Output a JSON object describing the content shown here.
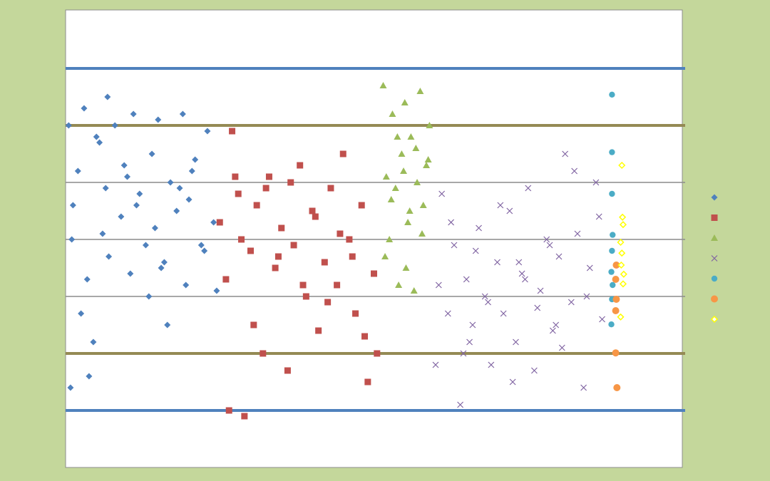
{
  "chart_data": {
    "type": "scatter",
    "xlim": [
      0,
      100
    ],
    "ylim": [
      0,
      8
    ],
    "background": "#c4d79b",
    "plot_background": "#ffffff",
    "hlines": [
      {
        "value": 7,
        "color": "#4f81bd",
        "width": 4
      },
      {
        "value": 6,
        "color": "#948a54",
        "width": 4
      },
      {
        "value": 5,
        "color": "#8c8c8c",
        "width": 1.5
      },
      {
        "value": 4,
        "color": "#8c8c8c",
        "width": 1.5
      },
      {
        "value": 3,
        "color": "#8c8c8c",
        "width": 1.5
      },
      {
        "value": 2,
        "color": "#948a54",
        "width": 4
      },
      {
        "value": 1,
        "color": "#4f81bd",
        "width": 4
      }
    ],
    "legend": "right",
    "series": [
      {
        "color": "#4f81bd",
        "marker": "diamond",
        "x": [
          0.5,
          1.2,
          2,
          3,
          3.5,
          4.5,
          5,
          6,
          6.5,
          7,
          8,
          9,
          10,
          10.5,
          11,
          12,
          13,
          14,
          14.5,
          15,
          16,
          17,
          18,
          19,
          19.5,
          20,
          21,
          22,
          23,
          24,
          24.5,
          3.8,
          6.8,
          1,
          2.5,
          13.5,
          9.5,
          18.5,
          22.5,
          0.8,
          5.5,
          15.5,
          11.5,
          20.5,
          16.5
        ],
        "values": [
          6.0,
          4.6,
          5.2,
          6.3,
          3.3,
          2.2,
          5.8,
          4.1,
          4.9,
          3.7,
          6.0,
          4.4,
          5.1,
          3.4,
          6.2,
          4.8,
          3.9,
          5.5,
          4.2,
          6.1,
          3.6,
          5.0,
          4.5,
          6.2,
          3.2,
          4.7,
          5.4,
          3.9,
          5.9,
          4.3,
          3.1,
          1.6,
          6.5,
          4.0,
          2.7,
          3.0,
          5.3,
          4.9,
          3.8,
          1.4,
          5.7,
          3.5,
          4.6,
          5.2,
          2.5
        ]
      },
      {
        "color": "#c0504d",
        "marker": "square",
        "x": [
          25,
          26,
          27,
          28,
          29,
          30,
          31,
          32,
          33,
          34,
          35,
          36,
          37,
          38,
          39,
          40,
          41,
          42,
          43,
          44,
          45,
          46,
          47,
          48,
          49,
          50,
          26.5,
          28.5,
          30.5,
          32.5,
          34.5,
          36.5,
          38.5,
          40.5,
          42.5,
          44.5,
          46.5,
          48.5,
          50.5,
          27.5
        ],
        "values": [
          4.3,
          3.3,
          5.9,
          4.8,
          0.9,
          3.8,
          4.6,
          2.0,
          5.1,
          3.5,
          4.2,
          1.7,
          3.9,
          5.3,
          3.0,
          4.5,
          2.4,
          3.6,
          4.9,
          3.2,
          5.5,
          4.0,
          2.7,
          4.6,
          1.5,
          3.4,
          1.0,
          4.0,
          2.5,
          4.9,
          3.7,
          5.0,
          3.2,
          4.4,
          2.9,
          4.1,
          3.7,
          2.3,
          2.0,
          5.1
        ]
      },
      {
        "color": "#9bbb59",
        "marker": "triangle",
        "x": [
          51.5,
          52,
          52.5,
          53,
          53.5,
          54,
          54.5,
          55,
          55.5,
          56,
          56.5,
          57,
          57.5,
          58,
          58.5,
          59,
          51.8,
          52.8,
          53.8,
          54.8,
          55.8,
          56.8,
          57.8,
          58.8,
          55.2
        ],
        "values": [
          6.7,
          5.1,
          4.0,
          6.2,
          4.9,
          3.2,
          5.5,
          6.4,
          4.3,
          5.8,
          3.1,
          5.0,
          6.6,
          4.6,
          5.3,
          6.0,
          3.7,
          4.7,
          5.8,
          5.2,
          4.5,
          5.6,
          4.1,
          5.4,
          3.5
        ]
      },
      {
        "color": "#8064a2",
        "marker": "x",
        "x": [
          60,
          61,
          62,
          63,
          64,
          65,
          66,
          67,
          68,
          69,
          70,
          71,
          72,
          73,
          74,
          75,
          76,
          77,
          78,
          79,
          80,
          81,
          82,
          83,
          84,
          85,
          86,
          87,
          60.5,
          62.5,
          64.5,
          66.5,
          68.5,
          70.5,
          72.5,
          74.5,
          76.5,
          78.5,
          80.5,
          82.5,
          84.5,
          86.5,
          65.5,
          73.5,
          79.5
        ],
        "values": [
          1.8,
          4.8,
          2.7,
          3.9,
          1.1,
          3.3,
          2.5,
          4.2,
          3.0,
          1.8,
          3.6,
          2.7,
          4.5,
          2.2,
          3.4,
          4.9,
          1.7,
          3.1,
          4.0,
          2.4,
          3.7,
          5.5,
          2.9,
          4.1,
          1.4,
          3.5,
          5.0,
          2.6,
          3.2,
          4.3,
          2.0,
          3.8,
          2.9,
          4.6,
          1.5,
          3.3,
          2.8,
          3.9,
          2.1,
          5.2,
          3.0,
          4.4,
          2.2,
          3.6,
          2.5
        ]
      },
      {
        "color": "#4bacc6",
        "marker": "circle",
        "x": [
          88.6,
          88.6,
          88.6,
          88.7,
          88.6,
          88.5,
          88.7,
          88.6,
          88.5
        ],
        "values": [
          6.54,
          5.53,
          4.8,
          4.08,
          3.8,
          3.43,
          3.2,
          2.95,
          2.51
        ]
      },
      {
        "color": "#f79646",
        "marker": "circle-large",
        "x": [
          89.3,
          89.2,
          89.3,
          89.2,
          89.2,
          89.4
        ],
        "values": [
          3.55,
          3.3,
          2.95,
          2.75,
          2.01,
          1.4
        ]
      },
      {
        "color": "#ffff00",
        "marker": "diamond-open",
        "x": [
          90.2,
          90.3,
          90.4,
          90.0,
          90.2,
          90.1,
          90.5,
          90.4,
          90.0
        ],
        "values": [
          5.3,
          4.39,
          4.26,
          3.95,
          3.76,
          3.55,
          3.39,
          3.22,
          2.64
        ]
      }
    ]
  }
}
